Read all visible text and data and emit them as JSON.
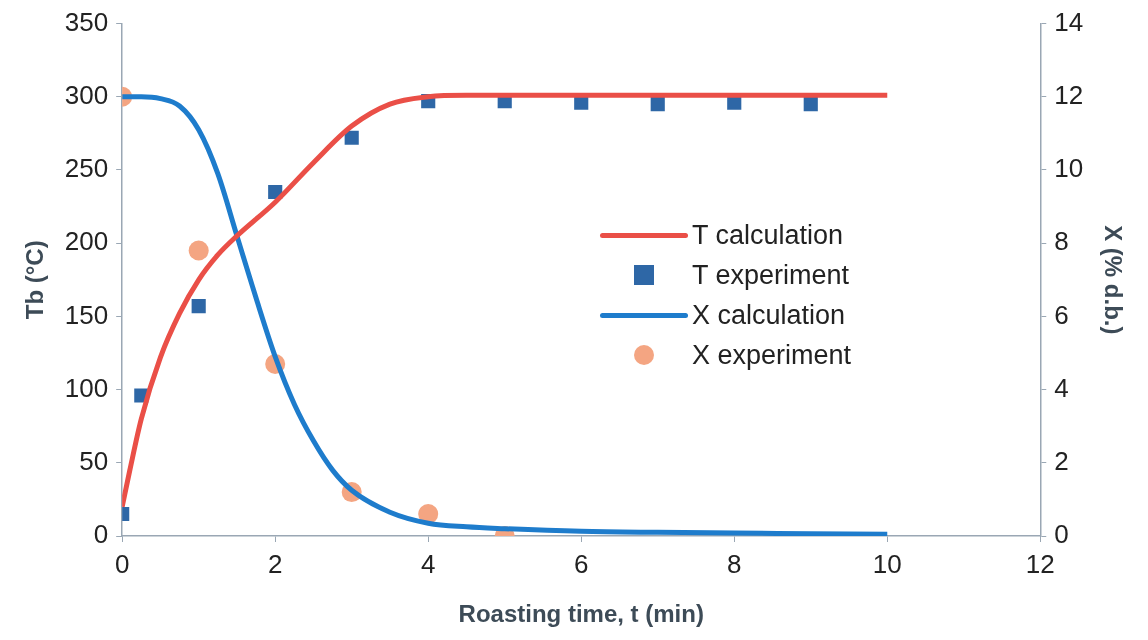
{
  "chart_data": {
    "type": "line",
    "xlabel": "Roasting time, t (min)",
    "ylabel": "Tb (°C)",
    "y2label": "X (% d.b.)",
    "xlim": [
      0,
      12
    ],
    "xticks": [
      0,
      2,
      4,
      6,
      8,
      10,
      12
    ],
    "ylim": [
      0,
      350
    ],
    "yticks": [
      0,
      50,
      100,
      150,
      200,
      250,
      300,
      350
    ],
    "y2lim": [
      0,
      14
    ],
    "y2ticks": [
      0,
      2,
      4,
      6,
      8,
      10,
      12,
      14
    ],
    "grid": false,
    "legend": "right",
    "line_style": "solid",
    "series": [
      {
        "name": "T calculation",
        "type": "line",
        "color": "#ea4f47",
        "x": [
          0,
          0.1,
          0.25,
          0.5,
          0.75,
          1,
          1.25,
          1.5,
          2,
          2.5,
          3,
          3.5,
          4,
          4.5,
          5,
          6,
          7,
          8,
          9,
          10
        ],
        "values": [
          20,
          45,
          80,
          122,
          152,
          175,
          192,
          205,
          228,
          255,
          280,
          295,
          300,
          301,
          301,
          301,
          301,
          301,
          301,
          301
        ]
      },
      {
        "name": "T experiment",
        "type": "scatter",
        "marker": "square",
        "color": "#2e67a6",
        "x": [
          0,
          0.25,
          1,
          2,
          3,
          4,
          5,
          6,
          7,
          8,
          9
        ],
        "values": [
          15,
          96,
          157,
          235,
          272,
          297,
          297,
          296,
          295,
          296,
          295
        ]
      },
      {
        "name": "X calculation",
        "type": "line",
        "axis": "y2",
        "color": "#1e7ccc",
        "x": [
          0,
          0.25,
          0.5,
          0.75,
          1,
          1.25,
          1.5,
          1.75,
          2,
          2.25,
          2.5,
          2.75,
          3,
          3.5,
          4,
          4.5,
          5,
          6,
          7,
          8,
          9,
          10
        ],
        "values": [
          12,
          12,
          11.95,
          11.75,
          11.1,
          9.9,
          8.2,
          6.5,
          4.9,
          3.6,
          2.6,
          1.8,
          1.25,
          0.65,
          0.35,
          0.25,
          0.2,
          0.13,
          0.1,
          0.08,
          0.06,
          0.05
        ]
      },
      {
        "name": "X experiment",
        "type": "scatter",
        "marker": "circle",
        "axis": "y2",
        "color": "#f4a582",
        "x": [
          0,
          1,
          2,
          3,
          4,
          5
        ],
        "values": [
          12,
          7.8,
          4.7,
          1.2,
          0.6,
          0
        ]
      }
    ]
  }
}
